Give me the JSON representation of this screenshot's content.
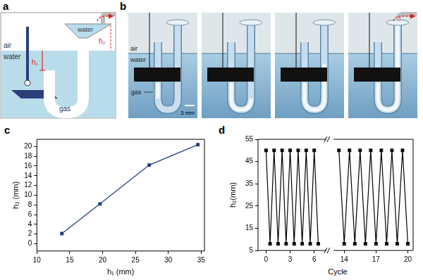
{
  "panel_labels": [
    "a",
    "b",
    "c",
    "d"
  ],
  "panel_a": {
    "air_label": "air",
    "water_label": "water",
    "funnel_label": "water",
    "gas_label": "gas",
    "h1_label": "h₁",
    "h2_label": "h₂"
  },
  "panel_b": {
    "air_label": "air",
    "water_label": "water",
    "gas_label": "gas",
    "scale_bar": "3 mm"
  },
  "chart_data": [
    {
      "type": "line",
      "x_label": "h₁ (mm)",
      "y_label": "h₂ (mm)",
      "x": [
        13.8,
        19.6,
        27.1,
        34.5
      ],
      "values": [
        2.1,
        8.2,
        16.2,
        20.4
      ],
      "color": "#1f3c88",
      "marker": "square",
      "xlim": [
        10,
        35.5
      ],
      "xticks": [
        10,
        15,
        20,
        25,
        30,
        35
      ],
      "ylim": [
        -1.5,
        21.5
      ],
      "yticks": [
        0,
        2,
        4,
        6,
        8,
        10,
        12,
        14,
        16,
        18,
        20
      ],
      "grid": false
    },
    {
      "type": "line",
      "x_label": "Cycle",
      "y_label": "h₂(mm)",
      "color": "#000000",
      "marker": "square",
      "ylim": [
        5,
        55
      ],
      "yticks": [
        5,
        15,
        25,
        35,
        45,
        55
      ],
      "grid": false,
      "segments": [
        {
          "x": [
            0,
            0.5,
            1,
            1.5,
            2,
            2.5,
            3,
            3.5,
            4,
            4.5,
            5,
            5.5,
            6,
            6.5
          ],
          "values": [
            50,
            8,
            50,
            8,
            50,
            8,
            50,
            8,
            50,
            8,
            50,
            8,
            50,
            8
          ],
          "xlim": [
            -1,
            7.5
          ],
          "xticks": [
            0,
            3,
            6
          ]
        },
        {
          "x": [
            13.5,
            14,
            14.5,
            15,
            15.5,
            16,
            16.5,
            17,
            17.5,
            18,
            18.5,
            19,
            19.5,
            20
          ],
          "values": [
            50,
            8,
            50,
            8,
            50,
            8,
            50,
            8,
            50,
            8,
            50,
            8,
            50,
            8
          ],
          "xlim": [
            13,
            20.5
          ],
          "xticks": [
            14,
            17,
            20
          ]
        }
      ]
    }
  ]
}
